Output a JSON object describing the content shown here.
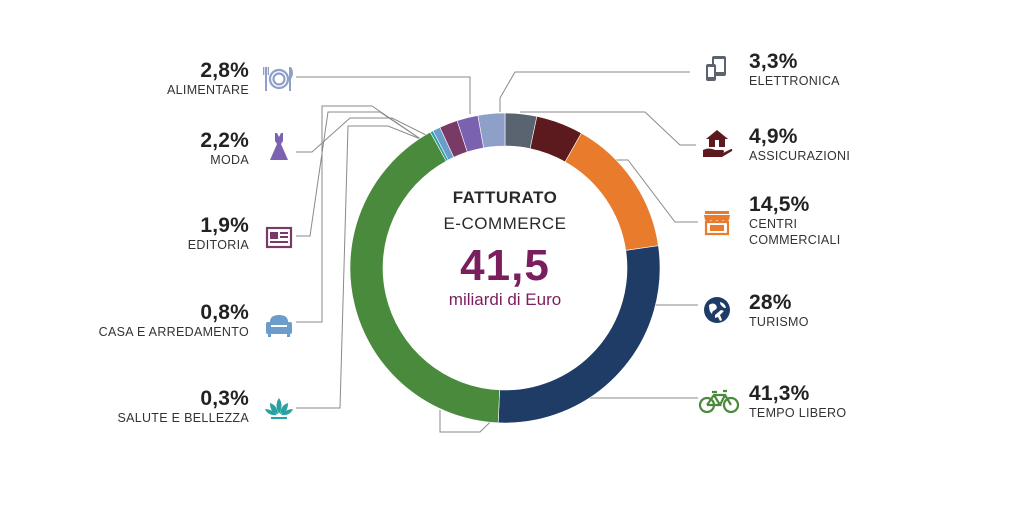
{
  "center": {
    "title": "FATTURATO",
    "subtitle": "E-COMMERCE",
    "total": "41,5",
    "unit": "miliardi di Euro"
  },
  "chart_data": {
    "type": "pie",
    "donut": true,
    "slices": [
      {
        "label": "ELETTRONICA",
        "pct_label": "3,3%",
        "value": 3.3,
        "color": "#5a6470",
        "icon": "tablet-phone-icon",
        "side": "right"
      },
      {
        "label": "ASSICURAZIONI",
        "pct_label": "4,9%",
        "value": 4.9,
        "color": "#5c1a1e",
        "icon": "house-hand-icon",
        "side": "right"
      },
      {
        "label": "CENTRI COMMERCIALI",
        "pct_label": "14,5%",
        "value": 14.5,
        "color": "#e87b2c",
        "icon": "storefront-icon",
        "side": "right"
      },
      {
        "label": "TURISMO",
        "pct_label": "28%",
        "value": 28,
        "color": "#1f3c66",
        "icon": "globe-plane-icon",
        "side": "right"
      },
      {
        "label": "TEMPO LIBERO",
        "pct_label": "41,3%",
        "value": 41.3,
        "color": "#4a8a3c",
        "icon": "bicycle-icon",
        "side": "right"
      },
      {
        "label": "SALUTE E BELLEZZA",
        "pct_label": "0,3%",
        "value": 0.3,
        "color": "#2aa0a0",
        "icon": "lotus-icon",
        "side": "left"
      },
      {
        "label": "CASA E ARREDAMENTO",
        "pct_label": "0,8%",
        "value": 0.8,
        "color": "#6a9ccc",
        "icon": "armchair-icon",
        "side": "left"
      },
      {
        "label": "EDITORIA",
        "pct_label": "1,9%",
        "value": 1.9,
        "color": "#7a3a66",
        "icon": "newspaper-icon",
        "side": "left"
      },
      {
        "label": "MODA",
        "pct_label": "2,2%",
        "value": 2.2,
        "color": "#7b62b0",
        "icon": "dress-icon",
        "side": "left"
      },
      {
        "label": "ALIMENTARE",
        "pct_label": "2,8%",
        "value": 2.8,
        "color": "#8ea0c8",
        "icon": "plate-cutlery-icon",
        "side": "left"
      }
    ]
  }
}
